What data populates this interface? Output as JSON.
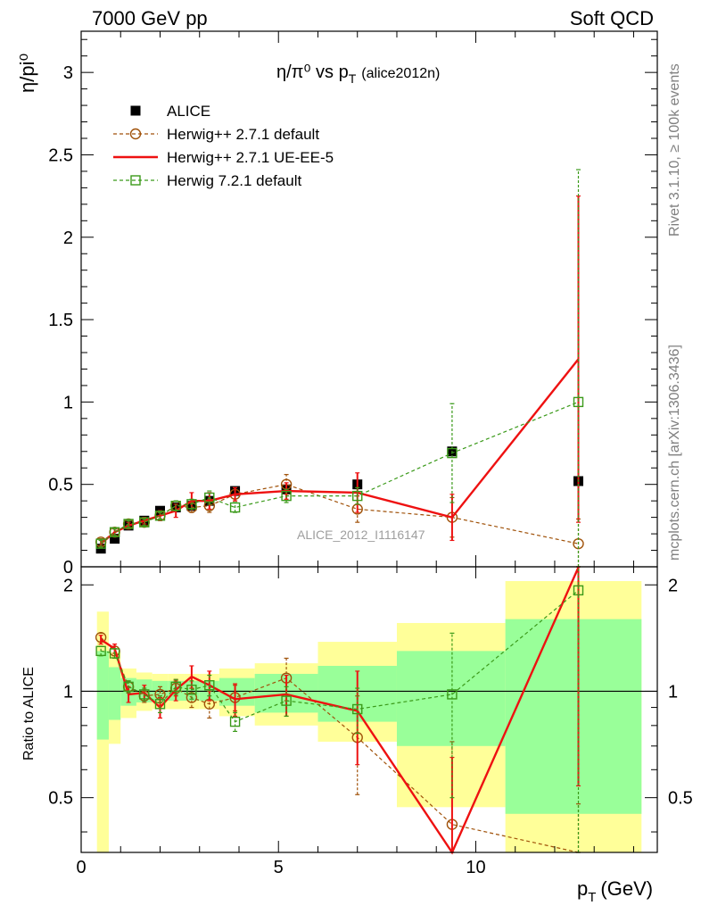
{
  "header": {
    "left": "7000 GeV pp",
    "right": "Soft QCD"
  },
  "title": {
    "main": "η/π⁰ vs p",
    "sub_T": "T",
    "tag": "(alice2012n)"
  },
  "watermark": "ALICE_2012_I1116147",
  "side_labels": {
    "rivet": "Rivet 3.1.10, ≥ 100k events",
    "mcplots": "mcplots.cern.ch [arXiv:1306.3436]"
  },
  "colors": {
    "alice": "#000000",
    "herwig271_default": "#a0520a",
    "herwig271_ueee5": "#ee1111",
    "herwig721_default": "#3b9a1a",
    "band_inner": "#99ff99",
    "band_outer": "#ffff99"
  },
  "chart_data": [
    {
      "type": "scatter",
      "panel": "main",
      "ylabel": "η/pi⁰",
      "xlim": [
        0,
        14.6
      ],
      "ylim": [
        0,
        3.25
      ],
      "x_ticks": [
        0,
        5,
        10
      ],
      "y_ticks": [
        0,
        0.5,
        1,
        1.5,
        2,
        2.5,
        3
      ],
      "y_tick_labels": [
        "0",
        "0.5",
        "1",
        "1.5",
        "2",
        "2.5",
        "3"
      ],
      "legend_position": "top-left",
      "series": [
        {
          "name": "ALICE",
          "style": "data",
          "marker": "filled-square",
          "x": [
            0.5,
            0.85,
            1.2,
            1.6,
            2.0,
            2.4,
            2.8,
            3.25,
            3.9,
            5.2,
            7.0,
            9.4,
            12.6
          ],
          "y": [
            0.11,
            0.17,
            0.25,
            0.28,
            0.34,
            0.36,
            0.37,
            0.4,
            0.46,
            0.47,
            0.5,
            0.7,
            0.52
          ]
        },
        {
          "name": "Herwig++ 2.7.1 default",
          "style": "dashed",
          "marker": "open-circle",
          "x": [
            0.5,
            0.85,
            1.2,
            1.6,
            2.0,
            2.4,
            2.8,
            3.25,
            3.9,
            5.2,
            7.0,
            9.4,
            12.6
          ],
          "y": [
            0.15,
            0.21,
            0.26,
            0.27,
            0.31,
            0.37,
            0.36,
            0.37,
            0.44,
            0.5,
            0.35,
            0.3,
            0.14
          ],
          "err": [
            0.02,
            0.02,
            0.02,
            0.02,
            0.02,
            0.03,
            0.03,
            0.04,
            0.04,
            0.06,
            0.08,
            0.12,
            0.15
          ]
        },
        {
          "name": "Herwig++ 2.7.1 UE-EE-5",
          "style": "solid",
          "marker": "none",
          "x": [
            0.5,
            0.85,
            1.2,
            1.6,
            2.0,
            2.4,
            2.8,
            3.25,
            3.9,
            5.2,
            7.0,
            9.4,
            12.6
          ],
          "y": [
            0.14,
            0.21,
            0.25,
            0.28,
            0.31,
            0.34,
            0.4,
            0.4,
            0.44,
            0.46,
            0.45,
            0.3,
            1.26
          ],
          "err": [
            0.02,
            0.02,
            0.02,
            0.02,
            0.03,
            0.04,
            0.05,
            0.05,
            0.04,
            0.05,
            0.12,
            0.14,
            0.99
          ]
        },
        {
          "name": "Herwig 7.2.1 default",
          "style": "dashed",
          "marker": "open-square",
          "x": [
            0.5,
            0.85,
            1.2,
            1.6,
            2.0,
            2.4,
            2.8,
            3.25,
            3.9,
            5.2,
            7.0,
            9.4,
            12.6
          ],
          "y": [
            0.14,
            0.21,
            0.26,
            0.27,
            0.31,
            0.37,
            0.38,
            0.42,
            0.36,
            0.43,
            0.43,
            0.69,
            1.0
          ],
          "err": [
            0.02,
            0.02,
            0.02,
            0.02,
            0.02,
            0.03,
            0.03,
            0.04,
            0.03,
            0.04,
            0.05,
            0.3,
            1.41
          ]
        }
      ]
    },
    {
      "type": "scatter",
      "panel": "ratio",
      "xlabel": "p",
      "xlabel_sub": "T",
      "xlabel_unit": "(GeV)",
      "ylabel": "Ratio to ALICE",
      "xlim": [
        0,
        14.6
      ],
      "ylim": [
        0.35,
        2.25
      ],
      "x_ticks": [
        0,
        5,
        10
      ],
      "x_tick_labels": [
        "0",
        "5",
        "10"
      ],
      "y_ticks": [
        0.5,
        1,
        2
      ],
      "y_tick_labels": [
        "0.5",
        "1",
        "2"
      ],
      "reference_line": 1,
      "bands": {
        "edges": [
          0.4,
          0.7,
          1.0,
          1.4,
          1.8,
          2.2,
          2.6,
          3.0,
          3.5,
          4.4,
          6.0,
          8.0,
          10.75,
          14.2
        ],
        "inner_lo": [
          0.73,
          0.83,
          0.91,
          0.93,
          0.94,
          0.94,
          0.94,
          0.94,
          0.91,
          0.87,
          0.82,
          0.7,
          0.45
        ],
        "inner_hi": [
          1.3,
          1.17,
          1.09,
          1.08,
          1.07,
          1.07,
          1.07,
          1.07,
          1.09,
          1.12,
          1.18,
          1.3,
          1.6
        ],
        "outer_lo": [
          0.35,
          0.71,
          0.84,
          0.88,
          0.89,
          0.89,
          0.89,
          0.89,
          0.85,
          0.8,
          0.72,
          0.47,
          0.35
        ],
        "outer_hi": [
          1.68,
          1.29,
          1.16,
          1.13,
          1.12,
          1.12,
          1.12,
          1.12,
          1.16,
          1.2,
          1.38,
          1.56,
          2.05
        ]
      },
      "series": [
        {
          "name": "Herwig++ 2.7.1 default",
          "style": "dashed",
          "marker": "open-circle",
          "x": [
            0.5,
            0.85,
            1.2,
            1.6,
            2.0,
            2.4,
            2.8,
            3.25,
            3.9,
            5.2,
            7.0,
            9.4,
            12.6
          ],
          "y": [
            1.42,
            1.3,
            1.03,
            0.97,
            0.98,
            1.02,
            0.96,
            0.92,
            0.96,
            1.09,
            0.74,
            0.42,
            0.28
          ],
          "err": [
            0.04,
            0.04,
            0.04,
            0.04,
            0.05,
            0.05,
            0.06,
            0.08,
            0.08,
            0.15,
            0.23,
            0.3,
            0.2
          ]
        },
        {
          "name": "Herwig++ 2.7.1 UE-EE-5",
          "style": "solid",
          "marker": "none",
          "x": [
            0.5,
            0.85,
            1.2,
            1.6,
            2.0,
            2.4,
            2.8,
            3.25,
            3.9,
            5.2,
            7.0,
            9.4,
            12.6
          ],
          "y": [
            1.4,
            1.32,
            0.98,
            0.99,
            0.9,
            1.01,
            1.1,
            1.04,
            0.95,
            0.98,
            0.88,
            0.35,
            2.24
          ],
          "err": [
            0.04,
            0.04,
            0.05,
            0.05,
            0.06,
            0.07,
            0.08,
            0.1,
            0.1,
            0.13,
            0.26,
            0.3,
            1.7
          ]
        },
        {
          "name": "Herwig 7.2.1 default",
          "style": "dashed",
          "marker": "open-square",
          "x": [
            0.5,
            0.85,
            1.2,
            1.6,
            2.0,
            2.4,
            2.8,
            3.25,
            3.9,
            5.2,
            7.0,
            9.4,
            12.6
          ],
          "y": [
            1.3,
            1.28,
            1.03,
            0.98,
            0.92,
            1.03,
            1.01,
            1.04,
            0.82,
            0.94,
            0.89,
            0.98,
            1.93
          ],
          "err": [
            0.04,
            0.04,
            0.04,
            0.04,
            0.05,
            0.05,
            0.06,
            0.07,
            0.05,
            0.09,
            0.13,
            0.48,
            2.0
          ]
        }
      ]
    }
  ]
}
